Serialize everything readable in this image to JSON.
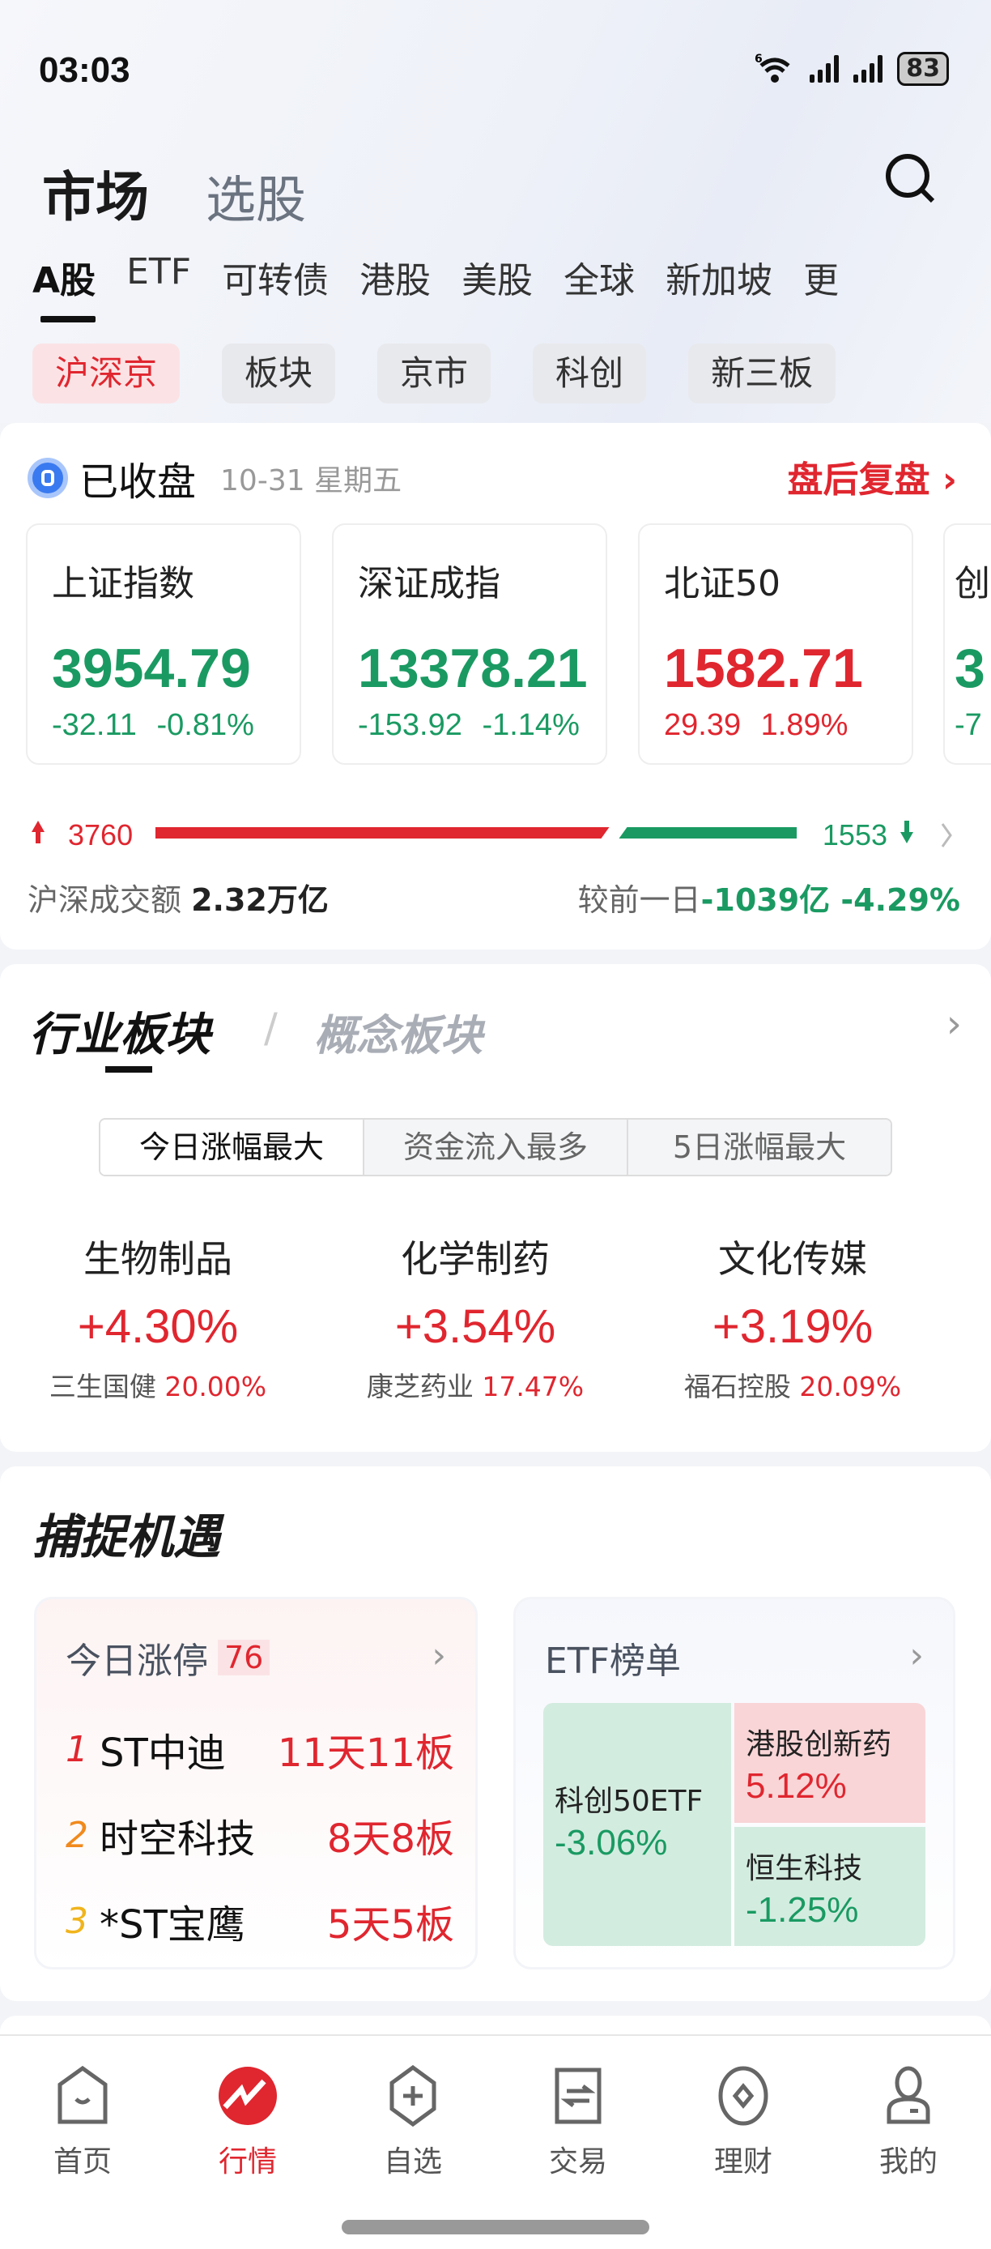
{
  "status_bar": {
    "time": "03:03",
    "battery": "83",
    "wifi_label": "6"
  },
  "header": {
    "title": "市场",
    "subtitle": "选股"
  },
  "tabs": [
    {
      "label": "A股",
      "active": true
    },
    {
      "label": "ETF"
    },
    {
      "label": "可转债"
    },
    {
      "label": "港股"
    },
    {
      "label": "美股"
    },
    {
      "label": "全球"
    },
    {
      "label": "新加坡"
    },
    {
      "label": "更"
    }
  ],
  "chips": [
    {
      "label": "沪深京",
      "active": true
    },
    {
      "label": "板块"
    },
    {
      "label": "京市"
    },
    {
      "label": "科创"
    },
    {
      "label": "新三板"
    }
  ],
  "market": {
    "status": "已收盘",
    "date": "10-31 星期五",
    "review_link": "盘后复盘",
    "indices": [
      {
        "name": "上证指数",
        "value": "3954.79",
        "change": "-32.11",
        "pct": "-0.81%",
        "trend": "down"
      },
      {
        "name": "深证成指",
        "value": "13378.21",
        "change": "-153.92",
        "pct": "-1.14%",
        "trend": "down"
      },
      {
        "name": "北证50",
        "value": "1582.71",
        "change": "29.39",
        "pct": "1.89%",
        "trend": "up"
      },
      {
        "name": "创",
        "value": "3",
        "change": "-7",
        "pct": "",
        "trend": "down"
      }
    ],
    "breadth": {
      "up": "3760",
      "down": "1553",
      "up_count": 3760,
      "down_count": 1553
    },
    "turnover_label": "沪深成交额",
    "turnover": "2.32万亿",
    "compare_label": "较前一日",
    "compare_value": "-1039亿 -4.29%"
  },
  "industry": {
    "tab_active": "行业板块",
    "tab_inactive": "概念板块",
    "segments": [
      {
        "label": "今日涨幅最大",
        "active": true
      },
      {
        "label": "资金流入最多"
      },
      {
        "label": "5日涨幅最大"
      }
    ],
    "sectors": [
      {
        "name": "生物制品",
        "pct": "+4.30%",
        "leader": "三生国健",
        "leader_pct": "20.00%"
      },
      {
        "name": "化学制药",
        "pct": "+3.54%",
        "leader": "康芝药业",
        "leader_pct": "17.47%"
      },
      {
        "name": "文化传媒",
        "pct": "+3.19%",
        "leader": "福石控股",
        "leader_pct": "20.09%"
      }
    ]
  },
  "opportunity": {
    "title": "捕捉机遇",
    "limit_up": {
      "title": "今日涨停",
      "count": "76",
      "rows": [
        {
          "rank": "1",
          "name": "ST中迪",
          "boards": "11天11板",
          "color": "#e0262f"
        },
        {
          "rank": "2",
          "name": "时空科技",
          "boards": "8天8板",
          "color": "#f08a1c"
        },
        {
          "rank": "3",
          "name": "*ST宝鹰",
          "boards": "5天5板",
          "color": "#f0b41c"
        }
      ]
    },
    "etf": {
      "title": "ETF榜单",
      "items": [
        {
          "name": "科创50ETF",
          "pct": "-3.06%"
        },
        {
          "name": "港股创新药",
          "pct": "5.12%"
        },
        {
          "name": "恒生科技",
          "pct": "-1.25%"
        }
      ]
    }
  },
  "bottom_nav": [
    {
      "label": "首页",
      "icon": "home-icon"
    },
    {
      "label": "行情",
      "icon": "market-icon",
      "active": true
    },
    {
      "label": "自选",
      "icon": "watchlist-icon"
    },
    {
      "label": "交易",
      "icon": "trade-icon"
    },
    {
      "label": "理财",
      "icon": "wealth-icon"
    },
    {
      "label": "我的",
      "icon": "profile-icon"
    }
  ],
  "colors": {
    "up": "#e0262f",
    "down": "#1a9a62",
    "accent": "#e0262f"
  }
}
